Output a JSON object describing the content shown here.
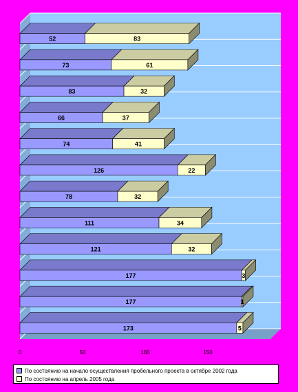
{
  "chart_data": {
    "type": "bar",
    "orientation": "horizontal",
    "stacked": true,
    "three_d": true,
    "categories": [
      "",
      "",
      "",
      "",
      "",
      "",
      "",
      "",
      "",
      "",
      "",
      ""
    ],
    "series": [
      {
        "name": "По состоянию на начало осуществления пробельного проекта в октябре 2002 года",
        "values": [
          52,
          73,
          83,
          66,
          74,
          126,
          78,
          111,
          121,
          177,
          177,
          173
        ]
      },
      {
        "name": "По состоянию на апрель 2005 года",
        "values": [
          83,
          61,
          32,
          37,
          41,
          22,
          32,
          34,
          32,
          3,
          1,
          5
        ]
      }
    ],
    "xticks": [
      "0",
      "50",
      "100",
      "150"
    ],
    "xlim": [
      0,
      200
    ],
    "grid": true,
    "legend_position": "bottom",
    "title": "",
    "xlabel": "",
    "ylabel": ""
  },
  "colors": {
    "background": "#ff00ff",
    "plot_back": "#99ccff",
    "series1": "#9999ff",
    "series2": "#ffffcc",
    "gridline": "#ffffff",
    "label_text": "#000000"
  }
}
